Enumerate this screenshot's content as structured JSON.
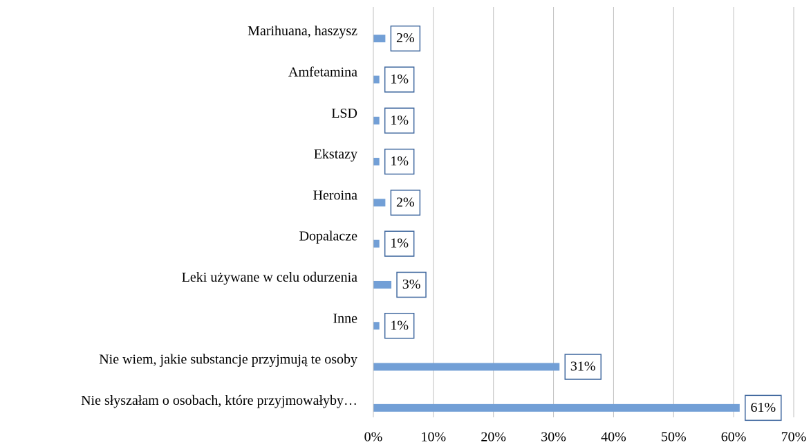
{
  "chart_data": {
    "type": "bar",
    "orientation": "horizontal",
    "categories": [
      "Marihuana, haszysz",
      "Amfetamina",
      "LSD",
      "Ekstazy",
      "Heroina",
      "Dopalacze",
      "Leki używane w celu odurzenia",
      "Inne",
      "Nie wiem, jakie substancje przyjmują te osoby",
      "Nie słyszałam o osobach, które przyjmowałyby…"
    ],
    "values": [
      2,
      1,
      1,
      1,
      2,
      1,
      3,
      1,
      31,
      61
    ],
    "value_labels": [
      "2%",
      "1%",
      "1%",
      "1%",
      "2%",
      "1%",
      "3%",
      "1%",
      "31%",
      "61%"
    ],
    "color": "#729fd6",
    "xlim": [
      0,
      70
    ],
    "xticks": [
      {
        "value": 0,
        "label": "0%"
      },
      {
        "value": 10,
        "label": "10%"
      },
      {
        "value": 20,
        "label": "20%"
      },
      {
        "value": 30,
        "label": "30%"
      },
      {
        "value": 40,
        "label": "40%"
      },
      {
        "value": 50,
        "label": "50%"
      },
      {
        "value": 60,
        "label": "60%"
      },
      {
        "value": 70,
        "label": "70%"
      }
    ],
    "grid": true
  }
}
